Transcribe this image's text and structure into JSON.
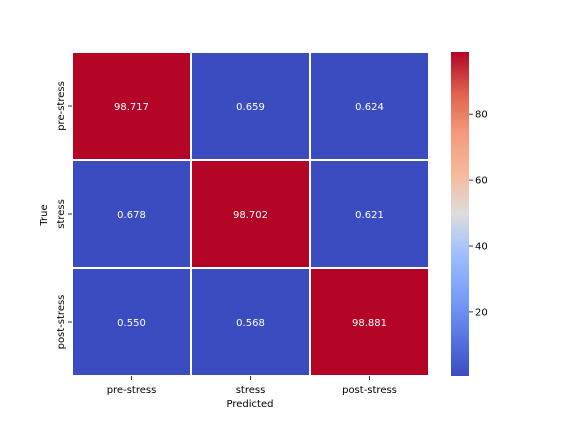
{
  "chart_data": {
    "type": "heatmap",
    "title": "",
    "xlabel": "Predicted",
    "ylabel": "True",
    "x_categories": [
      "pre-stress",
      "stress",
      "post-stress"
    ],
    "y_categories": [
      "pre-stress",
      "stress",
      "post-stress"
    ],
    "values": [
      [
        98.717,
        0.659,
        0.624
      ],
      [
        0.678,
        98.702,
        0.621
      ],
      [
        0.55,
        0.568,
        98.881
      ]
    ],
    "value_format": "%.3f",
    "colormap": "coolwarm",
    "cell_border_color": "#ffffff",
    "colorbar": {
      "vmin": 0.55,
      "vmax": 98.881,
      "ticks": [
        20,
        40,
        60,
        80
      ]
    },
    "annotation_color": "#ffffff"
  }
}
